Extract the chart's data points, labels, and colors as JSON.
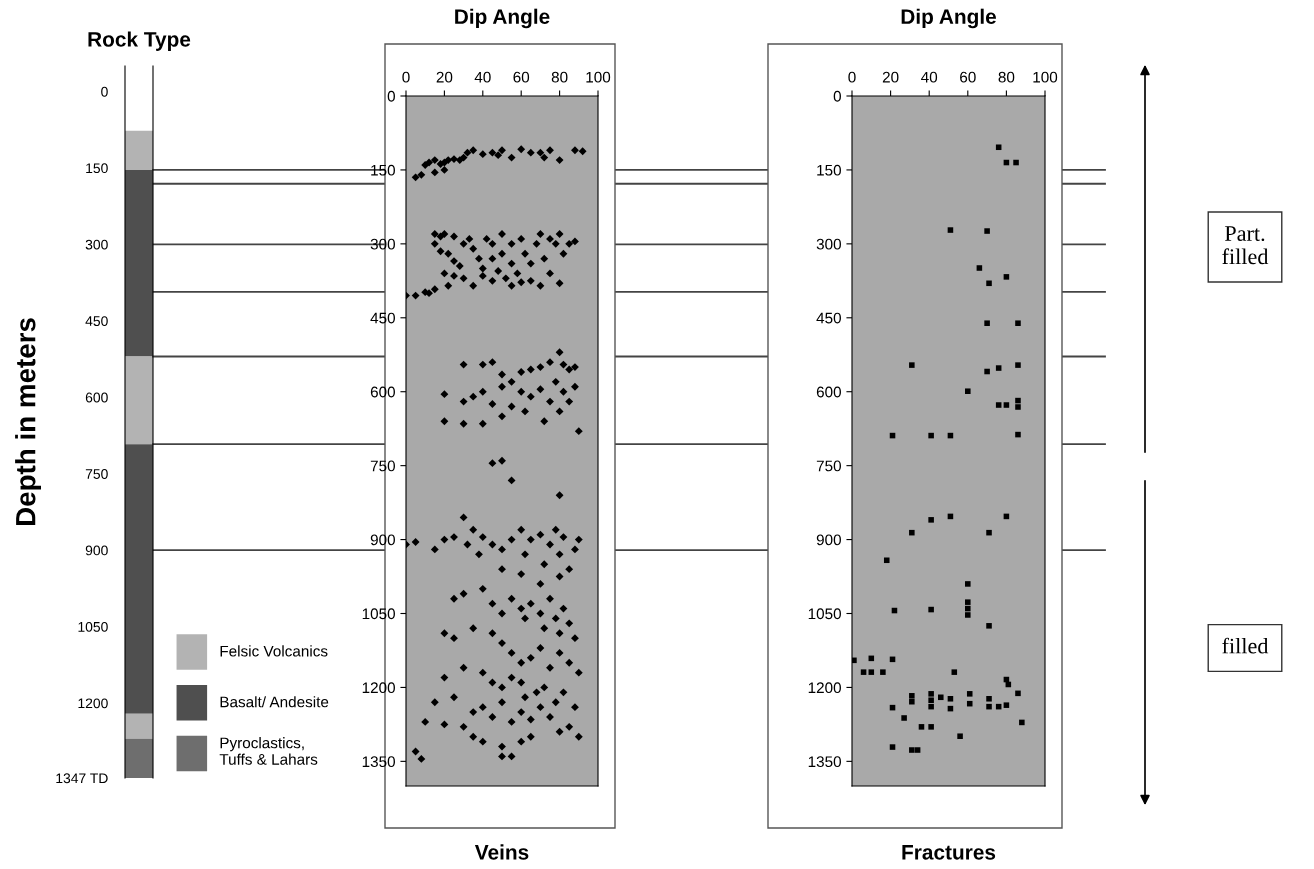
{
  "chart_data": [
    {
      "type": "bar",
      "title": "Rock Type",
      "ylabel": "Depth in meters",
      "categories": [
        null
      ],
      "series": [
        {
          "name": "Felsic Volcanics",
          "color": "#b3b3b3",
          "values": [
            77
          ],
          "base": [
            77
          ]
        },
        {
          "name": "Basalt/ Andesite",
          "color": "#4f4f4f",
          "values": [
            366
          ],
          "base": [
            154
          ]
        },
        {
          "color": "#b3b3b3",
          "values": [
            172
          ],
          "base": [
            520
          ]
        },
        {
          "color": "#4f4f4f",
          "values": [
            529
          ],
          "base": [
            692
          ]
        },
        {
          "color": "#b3b3b3",
          "values": [
            49
          ],
          "base": [
            1221
          ]
        },
        {
          "name": "Pyroclastics,\nTuffs & Lahars",
          "color": "#6e6e6e",
          "values": [
            77
          ],
          "base": [
            1270
          ]
        }
      ],
      "ylim": [
        1347,
        -50
      ],
      "yticks": [
        0,
        150,
        300,
        450,
        600,
        750,
        900,
        1050,
        1200,
        {
          "value": 1347,
          "label": "1347 TD"
        }
      ],
      "legend": "bottom right",
      "ref_lines": [
        {
          "axis": "y",
          "value": 154
        },
        {
          "axis": "y",
          "value": 181
        },
        {
          "axis": "y",
          "value": 300
        },
        {
          "axis": "y",
          "value": 393
        },
        {
          "axis": "y",
          "value": 520
        },
        {
          "axis": "y",
          "value": 692
        },
        {
          "axis": "y",
          "value": 900
        }
      ]
    },
    {
      "type": "scatter",
      "title": "Dip Angle",
      "xlabel": "Veins",
      "marker": "diamond",
      "series": [
        {
          "color": "#000000",
          "x": [
            88,
            92,
            75,
            70,
            65,
            60,
            50,
            48,
            45,
            40,
            35,
            32,
            30,
            28,
            25,
            22,
            20,
            18,
            15,
            12,
            10,
            20,
            15,
            5,
            8,
            55,
            72,
            80,
            15,
            18,
            20,
            25,
            15,
            18,
            22,
            25,
            28,
            30,
            33,
            35,
            38,
            40,
            42,
            45,
            45,
            48,
            50,
            50,
            52,
            55,
            55,
            58,
            60,
            62,
            65,
            65,
            68,
            70,
            72,
            75,
            75,
            78,
            80,
            82,
            85,
            88,
            30,
            35,
            40,
            45,
            55,
            60,
            70,
            80,
            20,
            25,
            0,
            5,
            10,
            12,
            15,
            22,
            30,
            40,
            45,
            50,
            55,
            60,
            65,
            70,
            75,
            80,
            82,
            85,
            88,
            20,
            30,
            35,
            40,
            45,
            50,
            50,
            55,
            60,
            62,
            65,
            70,
            72,
            75,
            78,
            80,
            82,
            85,
            88,
            20,
            30,
            40,
            90,
            45,
            50,
            55,
            80,
            30,
            35,
            20,
            25,
            32,
            38,
            0,
            5,
            15,
            40,
            45,
            50,
            55,
            60,
            62,
            65,
            70,
            72,
            75,
            78,
            80,
            82,
            85,
            88,
            90,
            50,
            60,
            70,
            80,
            25,
            30,
            40,
            45,
            50,
            55,
            60,
            62,
            65,
            70,
            72,
            75,
            78,
            80,
            82,
            85,
            88,
            20,
            25,
            35,
            45,
            50,
            55,
            60,
            65,
            70,
            75,
            80,
            85,
            90,
            30,
            40,
            20,
            45,
            50,
            55,
            60,
            62,
            68,
            72,
            78,
            82,
            88,
            15,
            25,
            35,
            40,
            45,
            50,
            55,
            60,
            65,
            70,
            75,
            85,
            90,
            10,
            20,
            30,
            35,
            40,
            50,
            55,
            60,
            65,
            80,
            5,
            8,
            50
          ],
          "values": [
            110,
            112,
            110,
            115,
            115,
            108,
            110,
            120,
            115,
            118,
            110,
            115,
            125,
            130,
            128,
            130,
            135,
            138,
            130,
            135,
            140,
            150,
            155,
            165,
            160,
            125,
            125,
            130,
            280,
            285,
            280,
            285,
            300,
            315,
            320,
            335,
            345,
            300,
            290,
            310,
            330,
            350,
            290,
            300,
            330,
            355,
            280,
            320,
            370,
            300,
            340,
            360,
            290,
            320,
            340,
            375,
            300,
            280,
            330,
            290,
            360,
            300,
            280,
            320,
            300,
            295,
            370,
            385,
            365,
            375,
            385,
            378,
            385,
            380,
            360,
            365,
            405,
            405,
            398,
            400,
            392,
            385,
            545,
            545,
            540,
            565,
            580,
            560,
            555,
            550,
            540,
            520,
            545,
            555,
            550,
            605,
            620,
            610,
            600,
            625,
            590,
            650,
            630,
            600,
            640,
            610,
            595,
            660,
            620,
            580,
            640,
            600,
            620,
            590,
            660,
            665,
            665,
            680,
            745,
            740,
            780,
            810,
            855,
            880,
            900,
            895,
            910,
            930,
            910,
            905,
            920,
            895,
            910,
            920,
            900,
            880,
            930,
            900,
            890,
            950,
            910,
            880,
            930,
            895,
            960,
            920,
            900,
            960,
            970,
            990,
            975,
            1020,
            1010,
            1000,
            1030,
            1050,
            1020,
            1040,
            1060,
            1030,
            1050,
            1080,
            1020,
            1060,
            1090,
            1040,
            1070,
            1100,
            1090,
            1100,
            1080,
            1090,
            1110,
            1130,
            1150,
            1140,
            1120,
            1160,
            1130,
            1150,
            1170,
            1160,
            1170,
            1180,
            1190,
            1200,
            1180,
            1190,
            1220,
            1210,
            1200,
            1230,
            1210,
            1240,
            1230,
            1220,
            1250,
            1240,
            1260,
            1230,
            1270,
            1250,
            1265,
            1240,
            1260,
            1280,
            1300,
            1270,
            1275,
            1280,
            1300,
            1310,
            1320,
            1340,
            1310,
            1300,
            1290,
            1330,
            1345,
            1340
          ]
        }
      ],
      "xlim": [
        0,
        100
      ],
      "xticks": [
        0,
        20,
        40,
        60,
        80,
        100
      ],
      "ylim": [
        1400,
        0
      ],
      "yticks": [
        0,
        150,
        300,
        450,
        600,
        750,
        900,
        1050,
        1200,
        1350
      ]
    },
    {
      "type": "scatter",
      "title": "Dip Angle",
      "xlabel": "Fractures",
      "marker": "square",
      "series": [
        {
          "color": "#000000",
          "x": [
            76,
            80,
            85,
            51,
            70,
            66,
            80,
            71,
            70,
            86,
            31,
            70,
            76,
            86,
            60,
            76,
            80,
            86,
            86,
            21,
            41,
            51,
            86,
            41,
            51,
            80,
            31,
            71,
            18,
            60,
            22,
            41,
            60,
            60,
            60,
            71,
            1,
            10,
            21,
            6,
            10,
            16,
            53,
            80,
            81,
            86,
            31,
            31,
            41,
            41,
            41,
            46,
            51,
            51,
            61,
            61,
            71,
            71,
            76,
            80,
            21,
            27,
            88,
            36,
            41,
            56,
            21,
            31,
            34
          ],
          "values": [
            104,
            135,
            135,
            272,
            274,
            349,
            367,
            380,
            461,
            461,
            546,
            559,
            552,
            546,
            599,
            627,
            627,
            618,
            631,
            689,
            689,
            689,
            687,
            860,
            853,
            853,
            886,
            886,
            942,
            990,
            1044,
            1042,
            1027,
            1040,
            1053,
            1075,
            1145,
            1141,
            1143,
            1169,
            1169,
            1169,
            1169,
            1184,
            1194,
            1212,
            1217,
            1229,
            1213,
            1226,
            1239,
            1220,
            1223,
            1243,
            1213,
            1233,
            1223,
            1239,
            1239,
            1236,
            1241,
            1262,
            1271,
            1280,
            1280,
            1299,
            1321,
            1327,
            1327
          ]
        }
      ],
      "xlim": [
        0,
        100
      ],
      "xticks": [
        0,
        20,
        40,
        60,
        80,
        100
      ],
      "ylim": [
        1400,
        0
      ],
      "yticks": [
        0,
        150,
        300,
        450,
        600,
        750,
        900,
        1050,
        1200,
        1350
      ],
      "annotations": [
        "Part.\nfilled",
        "filled"
      ]
    }
  ]
}
